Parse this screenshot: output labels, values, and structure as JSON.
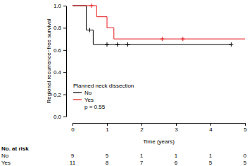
{
  "chart_data": {
    "type": "step",
    "x_label": "Time (years)",
    "y_label": "Regional recurrence−free survival",
    "xlim": [
      0,
      5
    ],
    "ylim": [
      0,
      1
    ],
    "xticks": [
      0,
      1,
      2,
      3,
      4,
      5
    ],
    "yticks": [
      {
        "value": 0,
        "label": "0.0"
      },
      {
        "value": 0.2,
        "label": "0.2"
      },
      {
        "value": 0.4,
        "label": "0.4"
      },
      {
        "value": 0.6,
        "label": "0.6"
      },
      {
        "value": 0.8,
        "label": "0.8"
      },
      {
        "value": 1,
        "label": "1.0"
      }
    ],
    "legend": "bottom-left",
    "legend_title": "Planned neck dissection",
    "annotation": "p = 0.55",
    "series": [
      {
        "name": "No",
        "color": "#000000",
        "x": [
          0,
          0.4,
          0.6,
          4.6
        ],
        "values": [
          1,
          0.78,
          0.65,
          0.65
        ],
        "censor_x": [
          0.5,
          1.0,
          1.3,
          1.6,
          4.6
        ],
        "censor_values": [
          0.78,
          0.65,
          0.65,
          0.65,
          0.65
        ]
      },
      {
        "name": "Yes",
        "color": "#e8191e",
        "x": [
          0,
          0.7,
          1.0,
          1.2,
          5
        ],
        "values": [
          1,
          0.9,
          0.8,
          0.7,
          0.7
        ],
        "censor_x": [
          0.55,
          2.6,
          3.2
        ],
        "censor_values": [
          1,
          0.7,
          0.7
        ]
      }
    ],
    "risk_table": {
      "title": "No. at risk",
      "x": [
        0,
        1,
        2,
        3,
        4,
        5
      ],
      "rows": [
        {
          "name": "No",
          "values": [
            9,
            5,
            1,
            1,
            1,
            0
          ]
        },
        {
          "name": "Yes",
          "values": [
            11,
            8,
            7,
            6,
            5,
            5
          ]
        }
      ]
    }
  }
}
